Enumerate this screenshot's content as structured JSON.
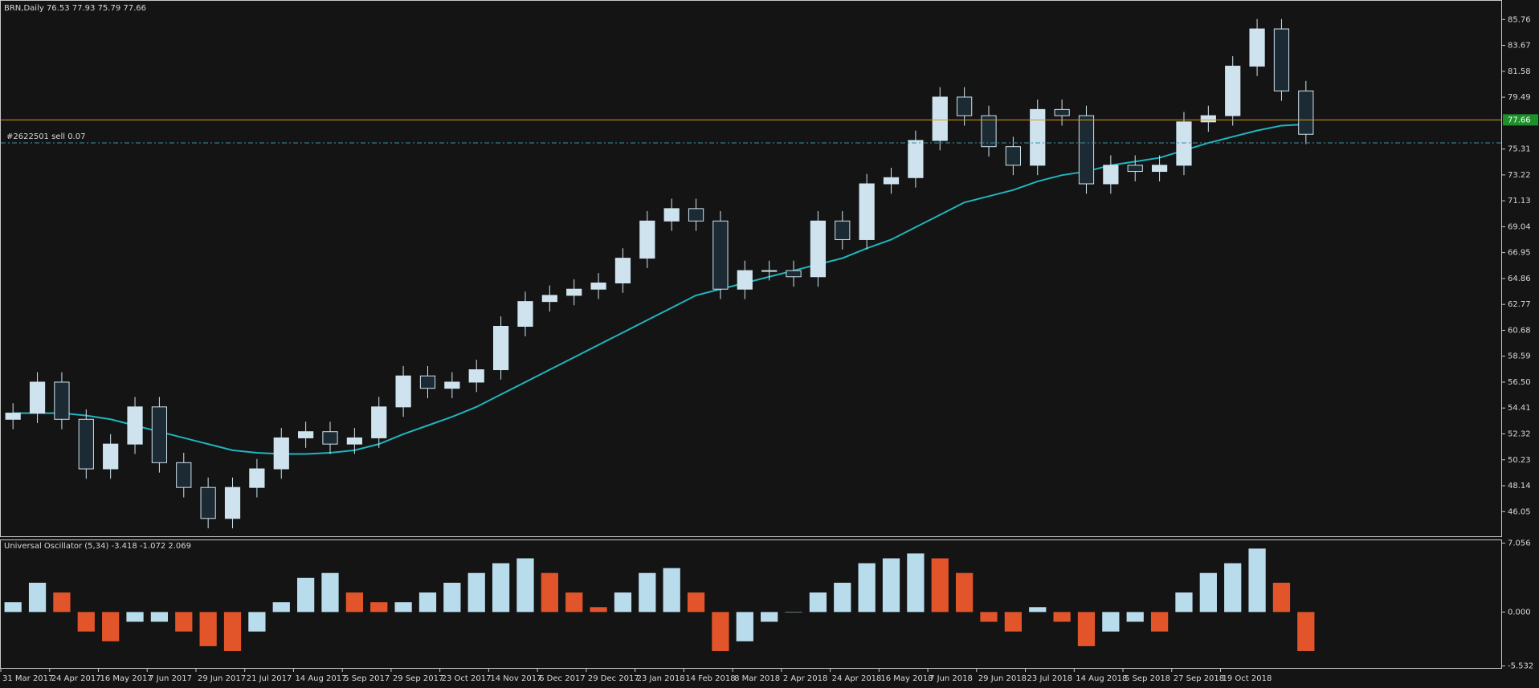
{
  "chart_data": [
    {
      "type": "candlestick",
      "title": "BRN,Daily  76.53 77.93 75.79 77.66",
      "categories": [
        "31 Mar 2017",
        null,
        "24 Apr 2017",
        null,
        "16 May 2017",
        null,
        "7 Jun 2017",
        null,
        "29 Jun 2017",
        null,
        "21 Jul 2017",
        null,
        "14 Aug 2017",
        null,
        "5 Sep 2017",
        null,
        "29 Sep 2017",
        null,
        "23 Oct 2017",
        null,
        "14 Nov 2017",
        null,
        "6 Dec 2017",
        null,
        "29 Dec 2017",
        null,
        "23 Jan 2018",
        null,
        "14 Feb 2018",
        null,
        "8 Mar 2018",
        null,
        "2 Apr 2018",
        null,
        "24 Apr 2018",
        null,
        "16 May 2018",
        null,
        "7 Jun 2018",
        null,
        "29 Jun 2018",
        null,
        "23 Jul 2018",
        null,
        "14 Aug 2018",
        null,
        "5 Sep 2018",
        null,
        "27 Sep 2018",
        null,
        "19 Oct 2018",
        null,
        null,
        null
      ],
      "open": [
        53.5,
        54,
        56.5,
        53.5,
        49.5,
        51.5,
        54.5,
        50,
        48,
        45.5,
        48,
        49.5,
        52,
        52.5,
        51.5,
        52,
        54.5,
        57,
        56,
        56.5,
        57.5,
        61,
        63,
        63.5,
        64,
        64.5,
        66.5,
        69.5,
        70.5,
        69.5,
        64,
        65.5,
        65.5,
        65,
        69.5,
        68,
        72.5,
        73,
        76,
        79.5,
        78,
        75.5,
        74,
        78.5,
        78,
        72.5,
        74,
        73.5,
        74,
        77.5,
        78,
        82,
        85,
        80
      ],
      "high": [
        54.8,
        57.3,
        57.3,
        54.3,
        52.3,
        55.3,
        55.3,
        50.8,
        48.8,
        48.8,
        50.3,
        52.8,
        53.3,
        53.3,
        52.8,
        55.3,
        57.8,
        57.8,
        57.3,
        58.3,
        61.8,
        63.8,
        64.3,
        64.8,
        65.3,
        67.3,
        70.3,
        71.3,
        71.3,
        70.3,
        66.3,
        66.3,
        66.3,
        70.3,
        70.3,
        73.3,
        73.8,
        76.8,
        80.3,
        80.3,
        78.8,
        76.3,
        79.3,
        79.3,
        78.8,
        74.8,
        74.8,
        74.8,
        78.3,
        78.8,
        82.8,
        85.8,
        85.8,
        80.8
      ],
      "low": [
        52.7,
        53.2,
        52.7,
        48.7,
        48.7,
        50.7,
        49.2,
        47.2,
        44.7,
        44.7,
        47.2,
        48.7,
        51.2,
        50.7,
        50.7,
        51.2,
        53.7,
        55.2,
        55.2,
        55.7,
        56.7,
        60.2,
        62.2,
        62.7,
        63.2,
        63.7,
        65.7,
        68.7,
        68.7,
        63.2,
        63.2,
        64.7,
        64.2,
        64.2,
        67.2,
        67.2,
        71.7,
        72.2,
        75.2,
        77.2,
        74.7,
        73.2,
        73.2,
        77.2,
        71.7,
        71.7,
        72.7,
        72.7,
        73.2,
        76.7,
        77.2,
        81.2,
        79.2,
        75.7
      ],
      "close": [
        54,
        56.5,
        53.5,
        49.5,
        51.5,
        54.5,
        50,
        48,
        45.5,
        48,
        49.5,
        52,
        52.5,
        51.5,
        52,
        54.5,
        57,
        56,
        56.5,
        57.5,
        61,
        63,
        63.5,
        64,
        64.5,
        66.5,
        69.5,
        70.5,
        69.5,
        64,
        65.5,
        65.5,
        65,
        69.5,
        68,
        72.5,
        73,
        76,
        79.5,
        78,
        75.5,
        74,
        78.5,
        78,
        72.5,
        74,
        73.5,
        74,
        77.5,
        78,
        82,
        85,
        80,
        76.5
      ],
      "ma_values": [
        54,
        54,
        54,
        53.8,
        53.5,
        53,
        52.5,
        52,
        51.5,
        51,
        50.8,
        50.7,
        50.7,
        50.8,
        51,
        51.5,
        52.3,
        53,
        53.7,
        54.5,
        55.5,
        56.5,
        57.5,
        58.5,
        59.5,
        60.5,
        61.5,
        62.5,
        63.5,
        64,
        64.5,
        65,
        65.5,
        66,
        66.5,
        67.3,
        68,
        69,
        70,
        71,
        71.5,
        72,
        72.7,
        73.2,
        73.5,
        74,
        74.3,
        74.6,
        75.2,
        75.8,
        76.3,
        76.8,
        77.2,
        77.3
      ],
      "ma_color": "#1fb5c0",
      "bull_color": "#cfe3ee",
      "bear_color": "#1c2a33",
      "wick_color": "#cfe3ee",
      "current_price": 77.66,
      "current_price_color": "#d89a0c",
      "order_label": "#2622501 sell 0.07",
      "order_level": 75.8,
      "order_color": "#3a8f9c",
      "ylim": [
        44.06,
        87.27
      ],
      "yticks": [
        85.76,
        83.67,
        81.58,
        79.49,
        75.31,
        73.22,
        71.13,
        69.04,
        66.95,
        64.86,
        62.77,
        60.68,
        58.59,
        {
          "value": 56.5,
          "label": "56.50"
        },
        54.41,
        52.32,
        50.23,
        48.14,
        46.05
      ]
    },
    {
      "type": "histogram-oscillator",
      "title": "Universal Oscillator (5,34) -3.418 -1.072 2.069",
      "values": [
        1,
        3,
        2,
        -2,
        -3,
        -1,
        -1,
        -2,
        -3.5,
        -4,
        -2,
        1,
        3.5,
        4,
        2,
        1,
        1,
        2,
        3,
        4,
        5,
        5.5,
        4,
        2,
        0.5,
        2,
        4,
        4.5,
        2,
        -4,
        -3,
        -1,
        0,
        2,
        3,
        5,
        5.5,
        6,
        5.5,
        4,
        -1,
        -2,
        0.5,
        -1,
        -3.5,
        -2,
        -1,
        -2,
        2,
        4,
        5,
        6.5,
        3,
        -4
      ],
      "rise_color": "#b9dcec",
      "fall_color": "#e2542a",
      "ylim": [
        -5.73,
        7.35
      ],
      "yticks": [
        7.056,
        {
          "value": 0,
          "label": "0.000"
        },
        -5.532
      ]
    }
  ]
}
